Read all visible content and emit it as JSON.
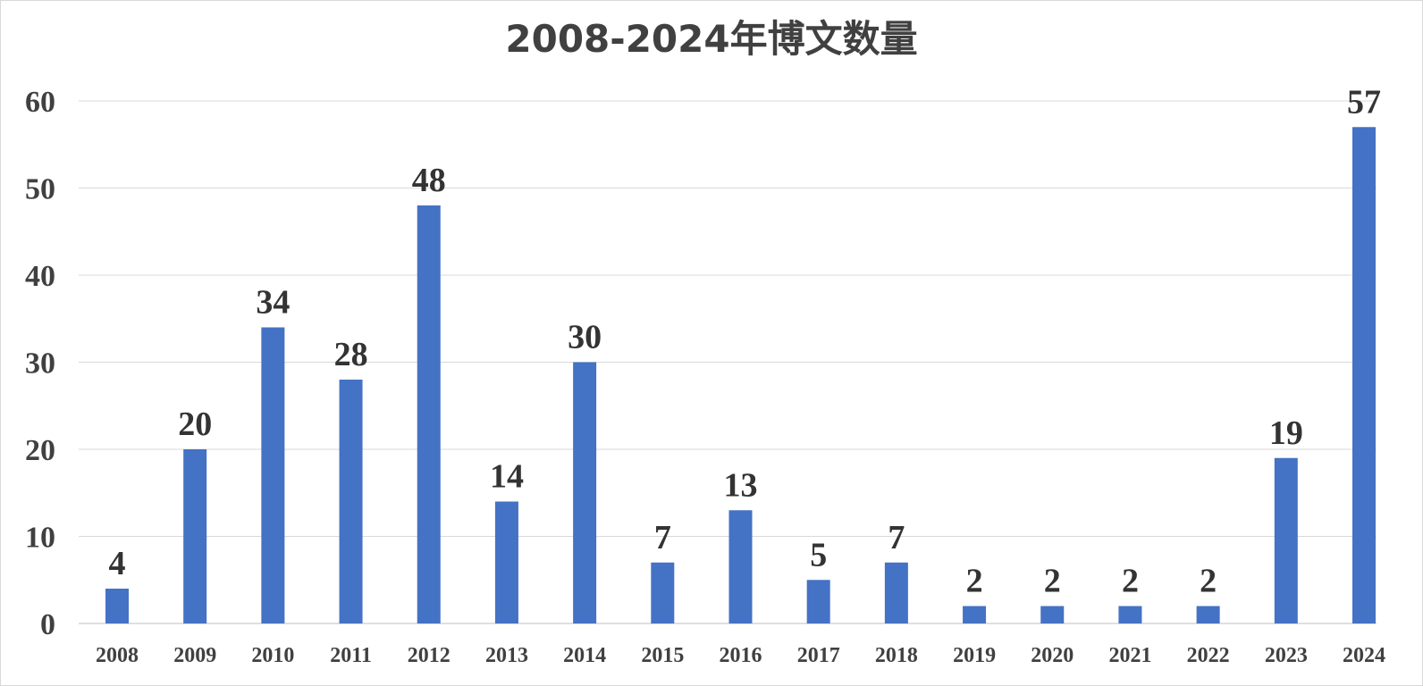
{
  "chart_data": {
    "type": "bar",
    "title": "2008-2024年博文数量",
    "xlabel": "",
    "ylabel": "",
    "categories": [
      "2008",
      "2009",
      "2010",
      "2011",
      "2012",
      "2013",
      "2014",
      "2015",
      "2016",
      "2017",
      "2018",
      "2019",
      "2020",
      "2021",
      "2022",
      "2023",
      "2024"
    ],
    "values": [
      4,
      20,
      34,
      28,
      48,
      14,
      30,
      7,
      13,
      5,
      7,
      2,
      2,
      2,
      2,
      19,
      57
    ],
    "ylim": [
      0,
      60
    ],
    "yticks": [
      0,
      10,
      20,
      30,
      40,
      50,
      60
    ],
    "grid": true,
    "legend": "none",
    "colors": {
      "bar": "#4472C4",
      "grid": "#d9d9d9",
      "text": "#404040"
    }
  }
}
